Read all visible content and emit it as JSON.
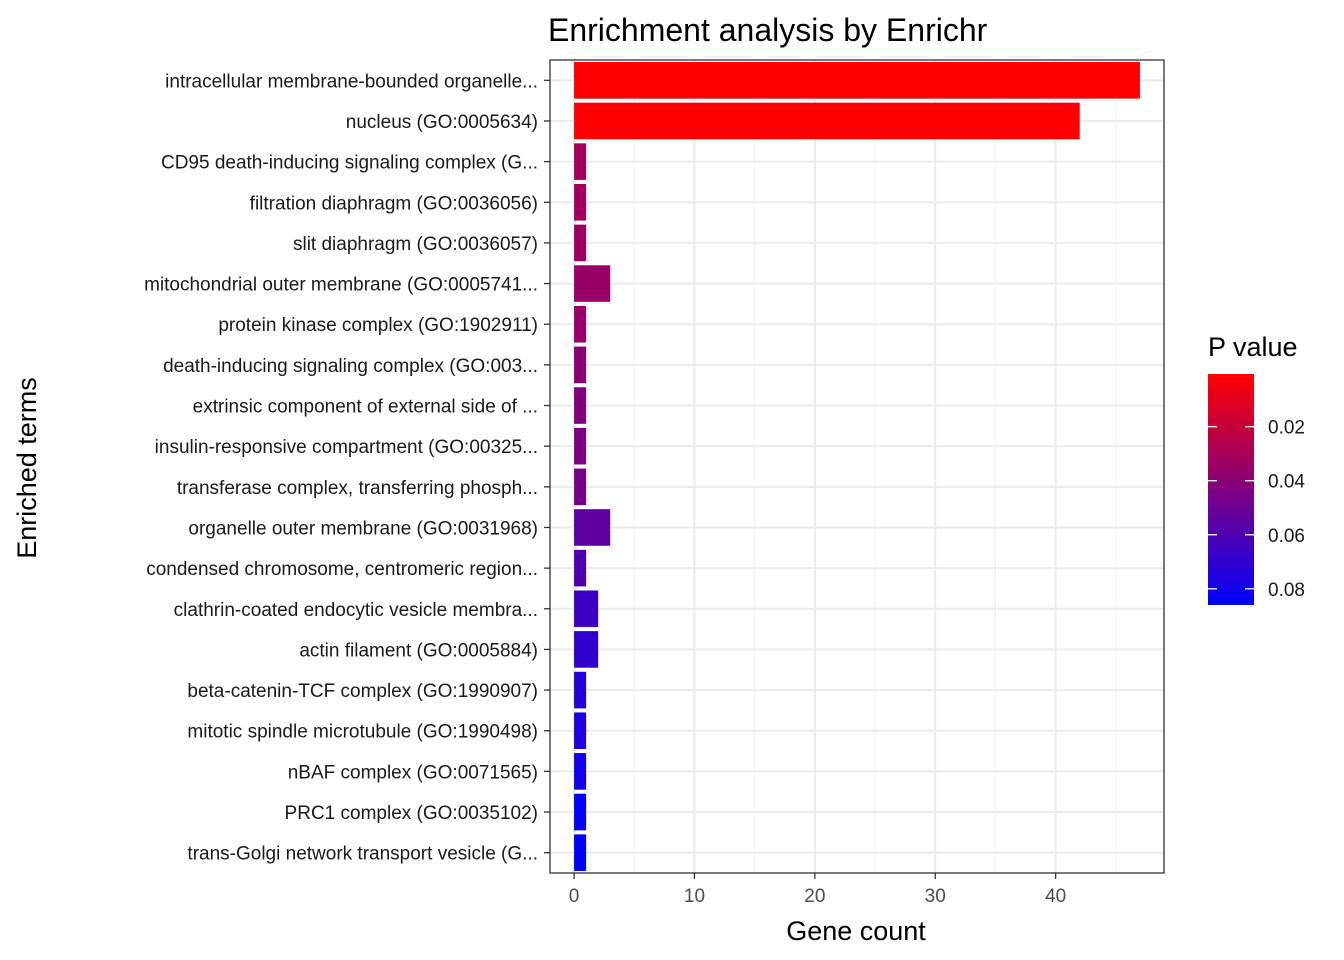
{
  "chart_data": {
    "type": "bar",
    "orientation": "horizontal",
    "title": "Enrichment analysis by Enrichr",
    "xlabel": "Gene count",
    "ylabel": "Enriched terms",
    "xlim": [
      -2,
      49
    ],
    "xticks": [
      0,
      10,
      20,
      30,
      40
    ],
    "grid": true,
    "categories": [
      "intracellular membrane-bounded organelle...",
      "nucleus (GO:0005634)",
      "CD95 death-inducing signaling complex (G...",
      "filtration diaphragm (GO:0036056)",
      "slit diaphragm (GO:0036057)",
      "mitochondrial outer membrane (GO:0005741...",
      "protein kinase complex (GO:1902911)",
      "death-inducing signaling complex (GO:003...",
      "extrinsic component of external side of ...",
      "insulin-responsive compartment (GO:00325...",
      "transferase complex, transferring phosph...",
      "organelle outer membrane (GO:0031968)",
      "condensed chromosome, centromeric region...",
      "clathrin-coated endocytic vesicle membra...",
      "actin filament (GO:0005884)",
      "beta-catenin-TCF complex (GO:1990907)",
      "mitotic spindle microtubule (GO:1990498)",
      "nBAF complex (GO:0071565)",
      "PRC1 complex (GO:0035102)",
      "trans-Golgi network transport vesicle (G..."
    ],
    "values": [
      47,
      42,
      1,
      1,
      1,
      3,
      1,
      1,
      1,
      1,
      1,
      3,
      1,
      2,
      2,
      1,
      1,
      1,
      1,
      1
    ],
    "p_values": [
      0.0005,
      0.001,
      0.031,
      0.032,
      0.033,
      0.035,
      0.036,
      0.04,
      0.042,
      0.044,
      0.046,
      0.054,
      0.06,
      0.066,
      0.07,
      0.074,
      0.076,
      0.08,
      0.085,
      0.086
    ],
    "color_scale": {
      "title": "P value",
      "low_color": "#ff0000",
      "high_color": "#0000ff",
      "range": [
        0.0005,
        0.086
      ],
      "ticks": [
        0.02,
        0.04,
        0.06,
        0.08
      ],
      "tick_labels": [
        "0.02",
        "0.04",
        "0.06",
        "0.08"
      ],
      "position": "right"
    }
  }
}
